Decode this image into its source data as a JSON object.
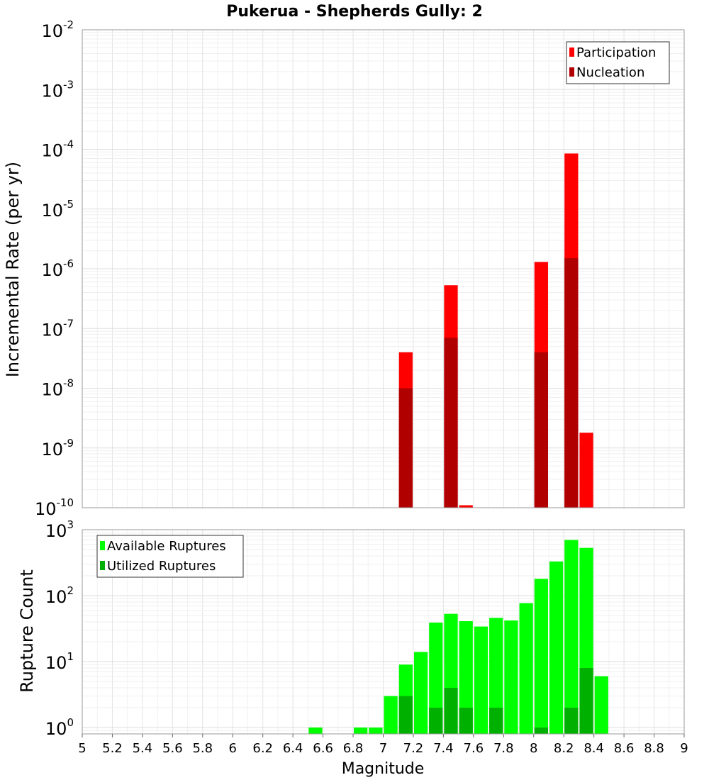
{
  "chart_data": [
    {
      "type": "bar",
      "title": "Pukerua - Shepherds Gully: 2",
      "xlabel": "",
      "ylabel": "Incremental Rate (per yr)",
      "yscale": "log",
      "xlim": [
        5,
        9
      ],
      "ylim": [
        1e-10,
        0.01
      ],
      "grid": true,
      "legend_position": "top-right",
      "ytick_exponents": [
        "-10",
        "-9",
        "-8",
        "-7",
        "-6",
        "-5",
        "-4",
        "-3",
        "-2"
      ],
      "ytick_base": "10",
      "bin_width": 0.1,
      "series": [
        {
          "name": "Participation",
          "color": "#ff0000",
          "x": [
            7.15,
            7.45,
            7.55,
            8.05,
            8.25,
            8.35
          ],
          "values": [
            4e-08,
            5.3e-07,
            1.1e-10,
            1.3e-06,
            8.5e-05,
            1.8e-09
          ]
        },
        {
          "name": "Nucleation",
          "color": "#b00000",
          "x": [
            7.15,
            7.45,
            8.05,
            8.25
          ],
          "values": [
            1e-08,
            7e-08,
            4e-08,
            1.5e-06
          ]
        }
      ]
    },
    {
      "type": "bar",
      "title": "",
      "xlabel": "Magnitude",
      "ylabel": "Rupture Count",
      "yscale": "log",
      "xlim": [
        5,
        9
      ],
      "ylim": [
        0.8,
        1000
      ],
      "grid": true,
      "legend_position": "top-left",
      "xticks": [
        "5",
        "5.2",
        "5.4",
        "5.6",
        "5.8",
        "6",
        "6.2",
        "6.4",
        "6.6",
        "6.8",
        "7",
        "7.2",
        "7.4",
        "7.6",
        "7.8",
        "8",
        "8.2",
        "8.4",
        "8.6",
        "8.8",
        "9"
      ],
      "ytick_exponents": [
        "0",
        "1",
        "2",
        "3"
      ],
      "ytick_base": "10",
      "bin_width": 0.1,
      "series": [
        {
          "name": "Available Ruptures",
          "color": "#00ff00",
          "x": [
            6.55,
            6.85,
            6.95,
            7.05,
            7.15,
            7.25,
            7.35,
            7.45,
            7.55,
            7.65,
            7.75,
            7.85,
            7.95,
            8.05,
            8.15,
            8.25,
            8.35,
            8.45
          ],
          "values": [
            1,
            1,
            1,
            3,
            9,
            14,
            39,
            53,
            41,
            34,
            46,
            42,
            77,
            180,
            330,
            700,
            530,
            6
          ]
        },
        {
          "name": "Utilized Ruptures",
          "color": "#00b000",
          "x": [
            7.15,
            7.35,
            7.45,
            7.55,
            7.75,
            8.05,
            8.25,
            8.35
          ],
          "values": [
            3,
            2,
            4,
            2,
            2,
            1,
            2,
            8
          ]
        }
      ]
    }
  ]
}
